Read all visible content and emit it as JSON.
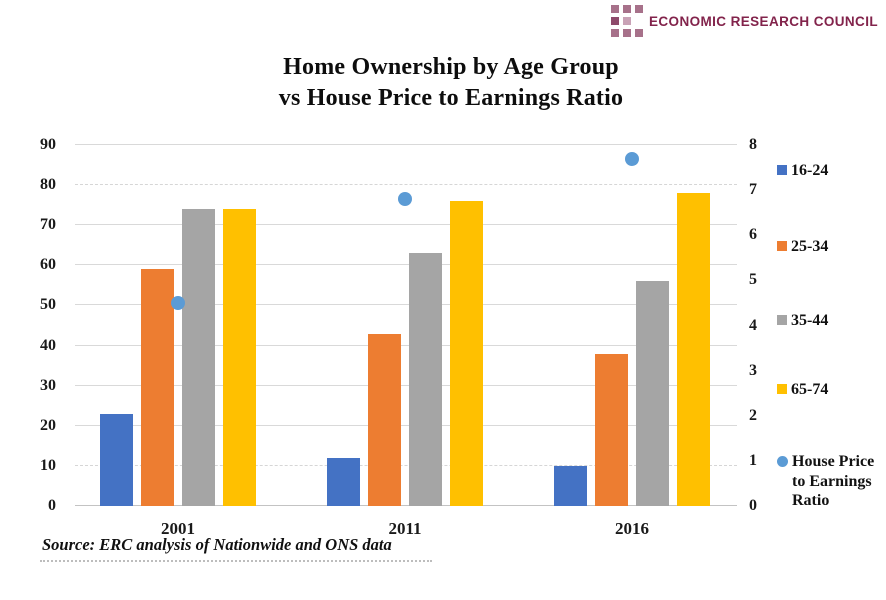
{
  "logo": {
    "text": "ECONOMIC RESEARCH COUNCIL",
    "text_color": "#82234B",
    "square_color": "#A7718A",
    "square_color_dark": "#8E4A6B",
    "square_color_light": "#C9A2B6"
  },
  "title": {
    "line1": "Home Ownership by Age Group",
    "line2": "vs House Price to Earnings Ratio"
  },
  "source": "Source: ERC analysis of Nationwide and ONS data",
  "chart_data": {
    "type": "bar",
    "subtype": "combo-bar-scatter",
    "title": "Home Ownership by Age Group vs House Price to Earnings Ratio",
    "categories": [
      "2001",
      "2011",
      "2016"
    ],
    "series": [
      {
        "name": "16-24",
        "type": "bar",
        "axis": "left",
        "color": "#4472C4",
        "values": [
          23,
          12,
          10
        ]
      },
      {
        "name": "25-34",
        "type": "bar",
        "axis": "left",
        "color": "#ED7D31",
        "values": [
          59,
          43,
          38
        ]
      },
      {
        "name": "35-44",
        "type": "bar",
        "axis": "left",
        "color": "#A5A5A5",
        "values": [
          74,
          63,
          56
        ]
      },
      {
        "name": "65-74",
        "type": "bar",
        "axis": "left",
        "color": "#FFC000",
        "values": [
          74,
          76,
          78
        ]
      },
      {
        "name": "House Price to Earnings Ratio",
        "type": "scatter",
        "axis": "right",
        "color": "#5B9BD5",
        "values": [
          4.5,
          6.8,
          7.7
        ]
      }
    ],
    "left_axis": {
      "min": 0,
      "max": 90,
      "step": 10,
      "ticks": [
        "0",
        "10",
        "20",
        "30",
        "40",
        "50",
        "60",
        "70",
        "80",
        "90"
      ],
      "dashed_gridlines": [
        10,
        80
      ]
    },
    "right_axis": {
      "min": 0,
      "max": 8,
      "step": 1,
      "ticks": [
        "0",
        "1",
        "2",
        "3",
        "4",
        "5",
        "6",
        "7",
        "8"
      ]
    },
    "grid": true,
    "legend_position": "right",
    "xlabel": "",
    "ylabel": ""
  }
}
